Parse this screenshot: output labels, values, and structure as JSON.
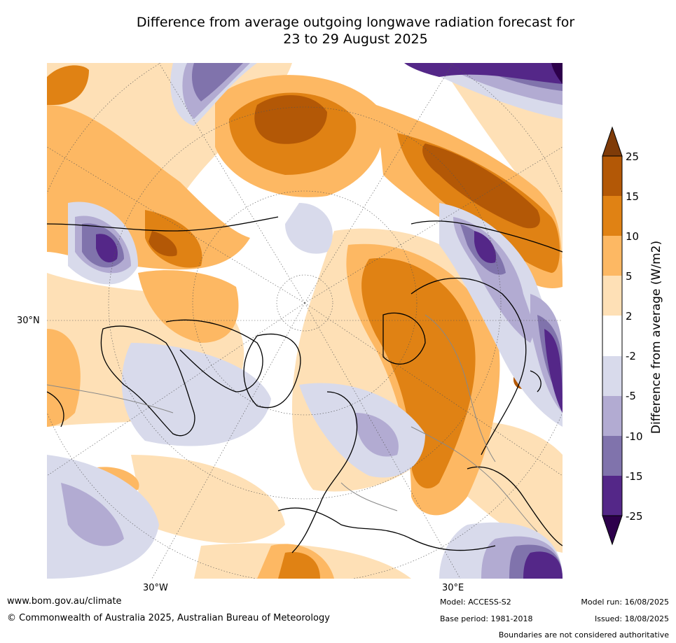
{
  "title": {
    "line1": "Difference from average outgoing longwave radiation forecast for",
    "line2": "23 to 29 August 2025"
  },
  "map": {
    "projection": "polar-stereographic",
    "lat_label": "30°N",
    "lon_labels": [
      "30°W",
      "30°E"
    ]
  },
  "colorbar": {
    "label": "Difference from average (W/m2)",
    "ticks": [
      "25",
      "15",
      "10",
      "5",
      "2",
      "-2",
      "-5",
      "-10",
      "-15",
      "-25"
    ],
    "colors": {
      "above_25": "#7f3b08",
      "15_25": "#b35806",
      "10_15": "#e08214",
      "5_10": "#fdb863",
      "2_5": "#fee0b6",
      "-2_2": "#ffffff",
      "-5_-2": "#d8daeb",
      "-10_-5": "#b2abd2",
      "-15_-10": "#8073ac",
      "-25_-15": "#542788",
      "below_-25": "#2d004b"
    }
  },
  "footer": {
    "url": "www.bom.gov.au/climate",
    "copyright": "© Commonwealth of Australia 2025, Australian Bureau of Meteorology",
    "model": "Model: ACCESS-S2",
    "base_period": "Base period: 1981-2018",
    "model_run": "Model run: 16/08/2025",
    "issued": "Issued: 18/08/2025",
    "disclaimer": "Boundaries are not considered authoritative"
  }
}
